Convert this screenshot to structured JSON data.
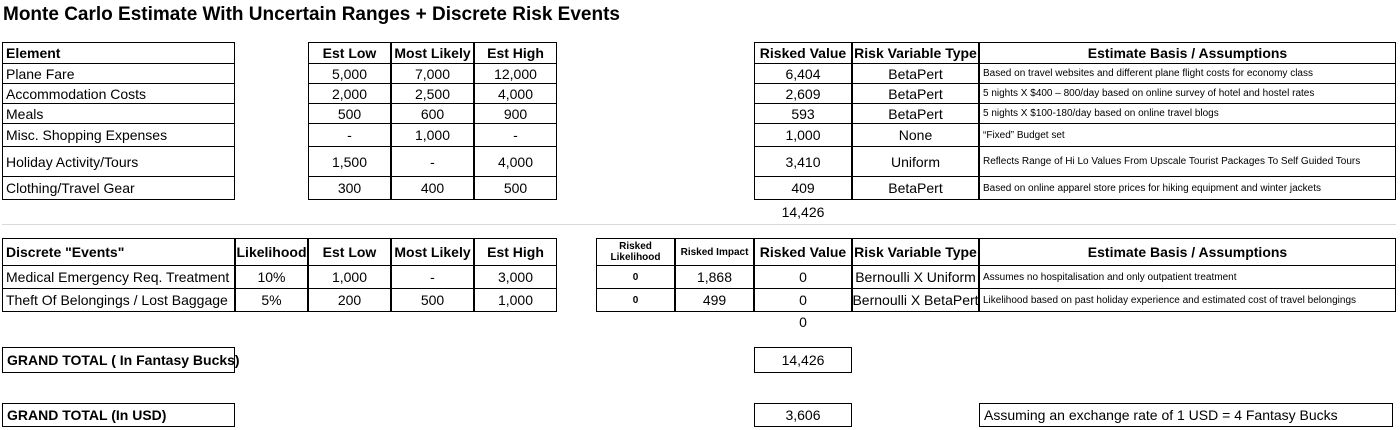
{
  "title": "Monte Carlo Estimate With Uncertain Ranges + Discrete Risk Events",
  "elements_table": {
    "headers": {
      "element": "Element",
      "est_low": "Est Low",
      "most_likely": "Most Likely",
      "est_high": "Est High",
      "risked_value": "Risked Value",
      "risk_variable_type": "Risk Variable Type",
      "basis": "Estimate Basis / Assumptions"
    },
    "rows": [
      {
        "element": "Plane Fare",
        "est_low": "5,000",
        "most_likely": "7,000",
        "est_high": "12,000",
        "risked_value": "6,404",
        "risk_type": "BetaPert",
        "basis": "Based on travel websites and different plane flight costs for economy class"
      },
      {
        "element": "Accommodation Costs",
        "est_low": "2,000",
        "most_likely": "2,500",
        "est_high": "4,000",
        "risked_value": "2,609",
        "risk_type": "BetaPert",
        "basis": "5 nights X  $400 – 800/day based on online survey of hotel and hostel rates"
      },
      {
        "element": "Meals",
        "est_low": "500",
        "most_likely": "600",
        "est_high": "900",
        "risked_value": "593",
        "risk_type": "BetaPert",
        "basis": "5 nights X $100-180/day based on online travel blogs"
      },
      {
        "element": "Misc. Shopping Expenses",
        "est_low": "-",
        "most_likely": "1,000",
        "est_high": "-",
        "risked_value": "1,000",
        "risk_type": "None",
        "basis": "“Fixed” Budget set"
      },
      {
        "element": "Holiday Activity/Tours",
        "est_low": "1,500",
        "most_likely": "-",
        "est_high": "4,000",
        "risked_value": "3,410",
        "risk_type": "Uniform",
        "basis": "Reflects Range of Hi Lo Values From Upscale Tourist Packages To Self Guided Tours"
      },
      {
        "element": "Clothing/Travel Gear",
        "est_low": "300",
        "most_likely": "400",
        "est_high": "500",
        "risked_value": "409",
        "risk_type": "BetaPert",
        "basis": "Based on online apparel store prices for hiking equipment and winter jackets"
      }
    ],
    "subtotal": "14,426"
  },
  "events_table": {
    "headers": {
      "event": "Discrete \"Events\"",
      "likelihood": "Likelihood",
      "est_low": "Est Low",
      "most_likely": "Most Likely",
      "est_high": "Est High",
      "risked_likelihood": "Risked Likelihood",
      "risked_impact": "Risked Impact",
      "risked_value": "Risked Value",
      "risk_variable_type": "Risk Variable Type",
      "basis": "Estimate Basis / Assumptions"
    },
    "rows": [
      {
        "event": "Medical Emergency Req. Treatment",
        "likelihood": "10%",
        "est_low": "1,000",
        "most_likely": "-",
        "est_high": "3,000",
        "risked_likelihood": "0",
        "risked_impact": "1,868",
        "risked_value": "0",
        "risk_type": "Bernoulli X Uniform",
        "basis": "Assumes no hospitalisation and only outpatient treatment"
      },
      {
        "event": "Theft Of Belongings / Lost Baggage",
        "likelihood": "5%",
        "est_low": "200",
        "most_likely": "500",
        "est_high": "1,000",
        "risked_likelihood": "0",
        "risked_impact": "499",
        "risked_value": "0",
        "risk_type": "Bernoulli X BetaPert",
        "basis": "Likelihood based on past holiday experience and estimated cost of travel belongings"
      }
    ],
    "subtotal": "0"
  },
  "totals": {
    "grand_total_fb_label": "GRAND TOTAL ( In Fantasy Bucks)",
    "grand_total_fb_value": "14,426",
    "grand_total_usd_label": "GRAND TOTAL (In USD)",
    "grand_total_usd_value": "3,606",
    "exchange_note": "Assuming an exchange rate of 1 USD = 4 Fantasy Bucks"
  }
}
